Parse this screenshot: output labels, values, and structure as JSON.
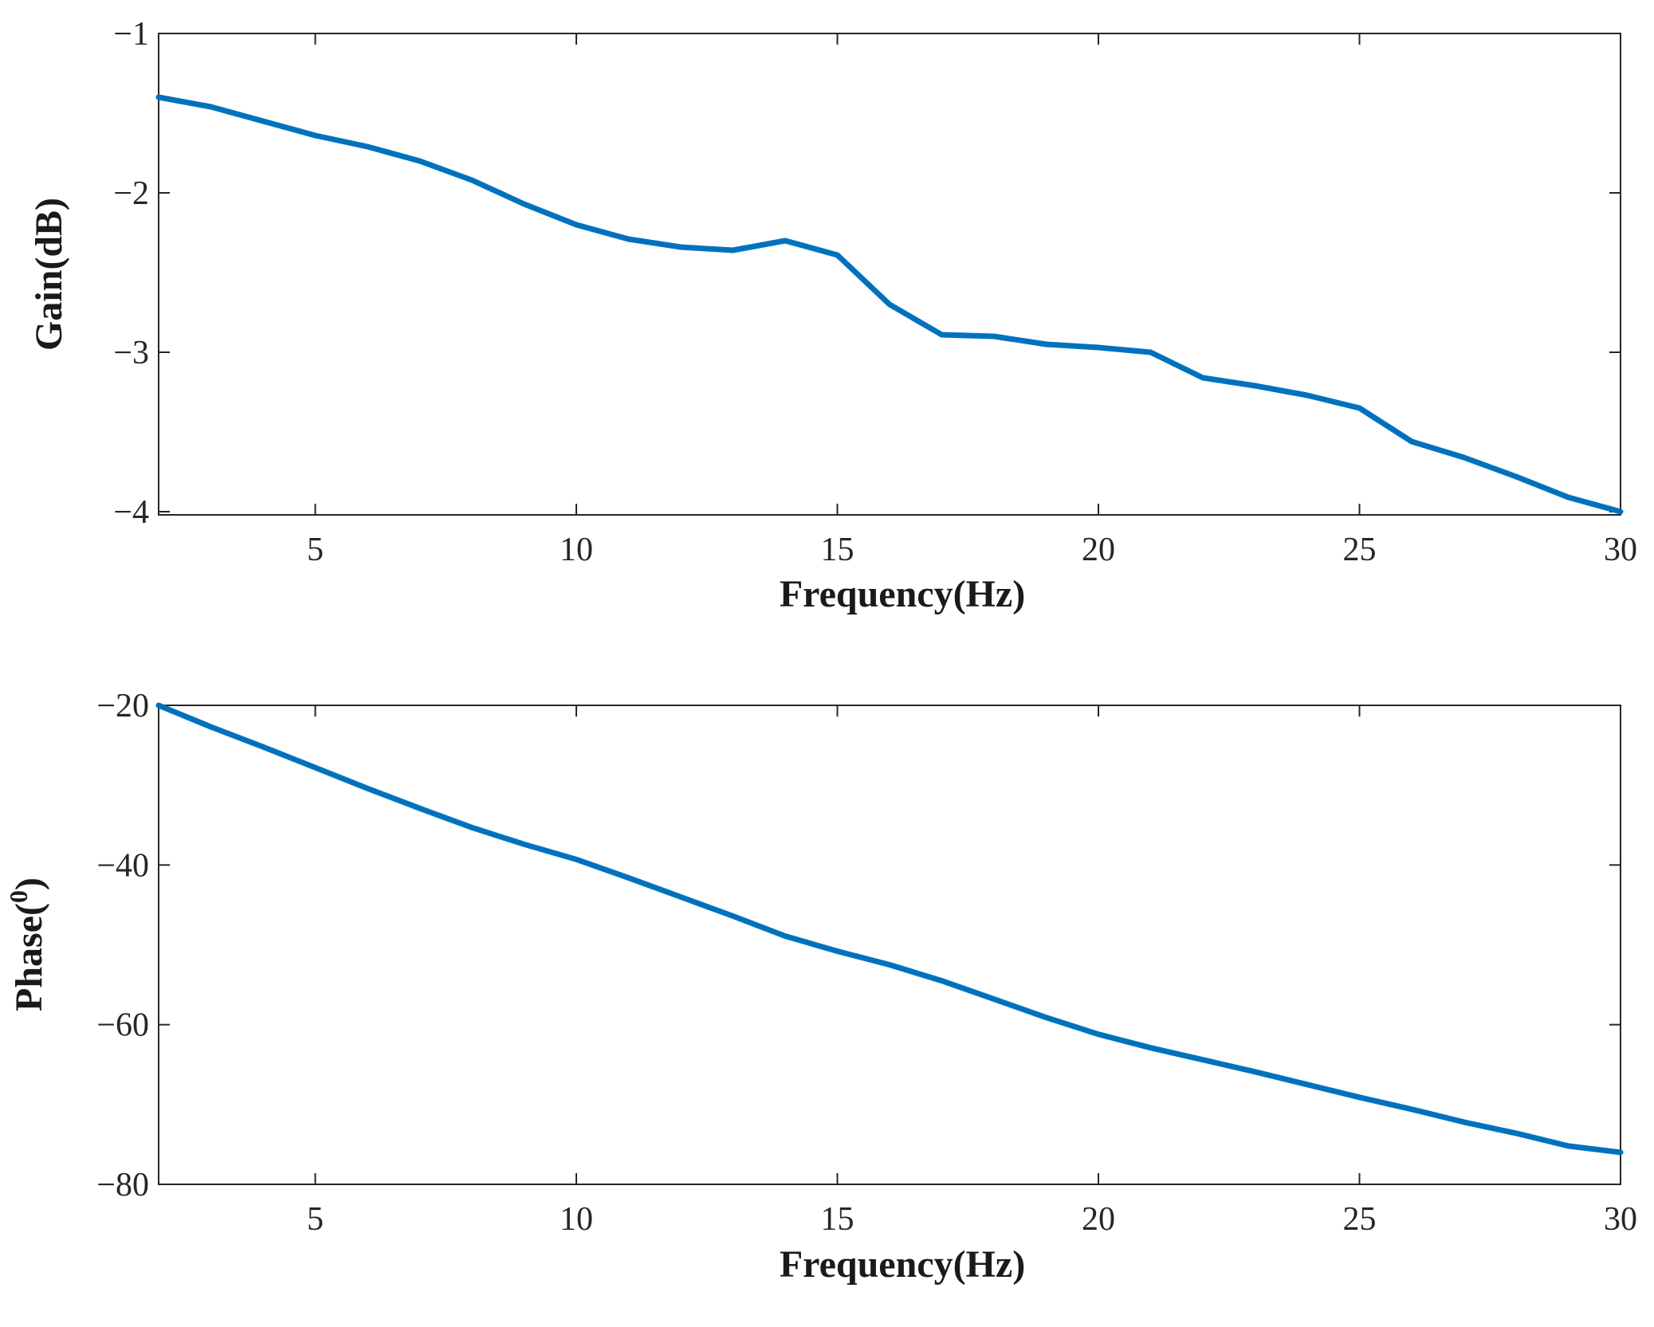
{
  "chart_data": [
    {
      "type": "line",
      "title": "",
      "xlabel": "Frequency(Hz)",
      "ylabel": "Gain(dB)",
      "xlim": [
        2,
        30
      ],
      "ylim": [
        -4.02,
        -1
      ],
      "xticks": [
        5,
        10,
        15,
        20,
        25,
        30
      ],
      "xtick_labels": [
        "5",
        "10",
        "15",
        "20",
        "25",
        "30"
      ],
      "yticks": [
        -1,
        -2,
        -3,
        -4
      ],
      "ytick_labels": [
        "−1",
        "−2",
        "−3",
        "−4"
      ],
      "grid": false,
      "color": "#0072BD",
      "series": [
        {
          "x": [
            2,
            3,
            4,
            5,
            6,
            7,
            8,
            9,
            10,
            11,
            12,
            13,
            14,
            15,
            16,
            17,
            18,
            19,
            20,
            21,
            22,
            23,
            24,
            25,
            26,
            27,
            28,
            29,
            30
          ],
          "values": [
            -1.4,
            -1.46,
            -1.55,
            -1.64,
            -1.71,
            -1.8,
            -1.92,
            -2.07,
            -2.2,
            -2.29,
            -2.34,
            -2.36,
            -2.3,
            -2.39,
            -2.7,
            -2.89,
            -2.9,
            -2.95,
            -2.97,
            -3.0,
            -3.16,
            -3.21,
            -3.27,
            -3.35,
            -3.56,
            -3.66,
            -3.78,
            -3.91,
            -4.0
          ]
        }
      ]
    },
    {
      "type": "line",
      "title": "",
      "xlabel": "Frequency(Hz)",
      "ylabel": "Phase(°)",
      "ylabel_main": "Phase(",
      "ylabel_sup": "0",
      "ylabel_close": ")",
      "xlim": [
        2,
        30
      ],
      "ylim": [
        -80,
        -20
      ],
      "xticks": [
        5,
        10,
        15,
        20,
        25,
        30
      ],
      "xtick_labels": [
        "5",
        "10",
        "15",
        "20",
        "25",
        "30"
      ],
      "yticks": [
        -20,
        -40,
        -60,
        -80
      ],
      "ytick_labels": [
        "−20",
        "−40",
        "−60",
        "−80"
      ],
      "grid": false,
      "color": "#0072BD",
      "series": [
        {
          "x": [
            2,
            3,
            4,
            5,
            6,
            7,
            8,
            9,
            10,
            11,
            12,
            13,
            14,
            15,
            16,
            17,
            18,
            19,
            20,
            21,
            22,
            23,
            24,
            25,
            26,
            27,
            28,
            29,
            30
          ],
          "values": [
            -20,
            -22.7,
            -25.2,
            -27.8,
            -30.4,
            -32.9,
            -35.3,
            -37.4,
            -39.3,
            -41.6,
            -44.0,
            -46.4,
            -48.9,
            -50.8,
            -52.5,
            -54.5,
            -56.8,
            -59.1,
            -61.2,
            -62.9,
            -64.4,
            -65.9,
            -67.5,
            -69.1,
            -70.6,
            -72.2,
            -73.6,
            -75.2,
            -76.0
          ]
        }
      ]
    }
  ]
}
